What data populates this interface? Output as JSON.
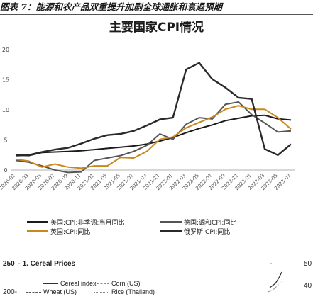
{
  "caption": "图表 7：能源和农产品双重提升加剧全球通胀和衰退预期",
  "chart_data": [
    {
      "type": "line",
      "title": "主要国家CPI情况",
      "x": [
        "2020-01",
        "2020-03",
        "2020-05",
        "2020-07",
        "2020-09",
        "2020-11",
        "2021-01",
        "2021-03",
        "2021-05",
        "2021-07",
        "2021-09",
        "2021-11",
        "2022-01",
        "2022-03",
        "2022-05",
        "2022-07",
        "2022-09",
        "2022-11",
        "2023-01",
        "2023-03",
        "2023-05",
        "2023-07"
      ],
      "ylim": [
        0,
        20
      ],
      "yticks": [
        0,
        5,
        10,
        15,
        20
      ],
      "series": [
        {
          "name": "美国:CPI:非季调:当月同比",
          "color": "#1a1a1a",
          "values": [
            2.5,
            2.4,
            2.9,
            3.0,
            3.1,
            3.2,
            3.4,
            3.6,
            3.8,
            4.0,
            4.3,
            4.8,
            5.4,
            6.2,
            6.9,
            7.5,
            8.2,
            8.6,
            9.0,
            9.1,
            8.5,
            8.3
          ]
        },
        {
          "name": "德国:调和CPI:同比",
          "color": "#555555",
          "values": [
            1.6,
            1.3,
            0.7,
            0.0,
            -0.4,
            -0.3,
            1.6,
            2.0,
            2.4,
            3.1,
            4.1,
            6.0,
            5.1,
            7.6,
            8.7,
            8.5,
            10.9,
            11.3,
            9.2,
            7.8,
            6.3,
            6.5
          ]
        },
        {
          "name": "英国:CPI:同比",
          "color": "#c9881e",
          "values": [
            1.8,
            1.5,
            0.5,
            1.0,
            0.5,
            0.3,
            0.7,
            0.7,
            2.1,
            2.0,
            3.1,
            5.1,
            5.5,
            7.0,
            7.9,
            8.8,
            10.1,
            10.7,
            10.1,
            10.1,
            8.7,
            6.8
          ]
        },
        {
          "name": "俄罗斯:CPI:同比",
          "color": "#2a2a2a",
          "values": [
            2.4,
            2.5,
            3.0,
            3.4,
            3.7,
            4.4,
            5.2,
            5.8,
            6.0,
            6.5,
            7.4,
            8.4,
            8.7,
            16.7,
            17.8,
            15.1,
            13.7,
            12.0,
            11.8,
            3.5,
            2.5,
            4.3
          ]
        }
      ]
    },
    {
      "type": "line",
      "title": "1. Cereal Prices",
      "yticks": [
        200,
        250
      ],
      "series": [
        {
          "name": "Cereal index",
          "color": "#333333"
        },
        {
          "name": "Corn (US)",
          "color": "#888888"
        },
        {
          "name": "Wheat (US)",
          "color": "#555555"
        },
        {
          "name": "Rice (Thailand)",
          "color": "#888888"
        }
      ],
      "right_ticks": [
        "50",
        "40"
      ]
    }
  ]
}
